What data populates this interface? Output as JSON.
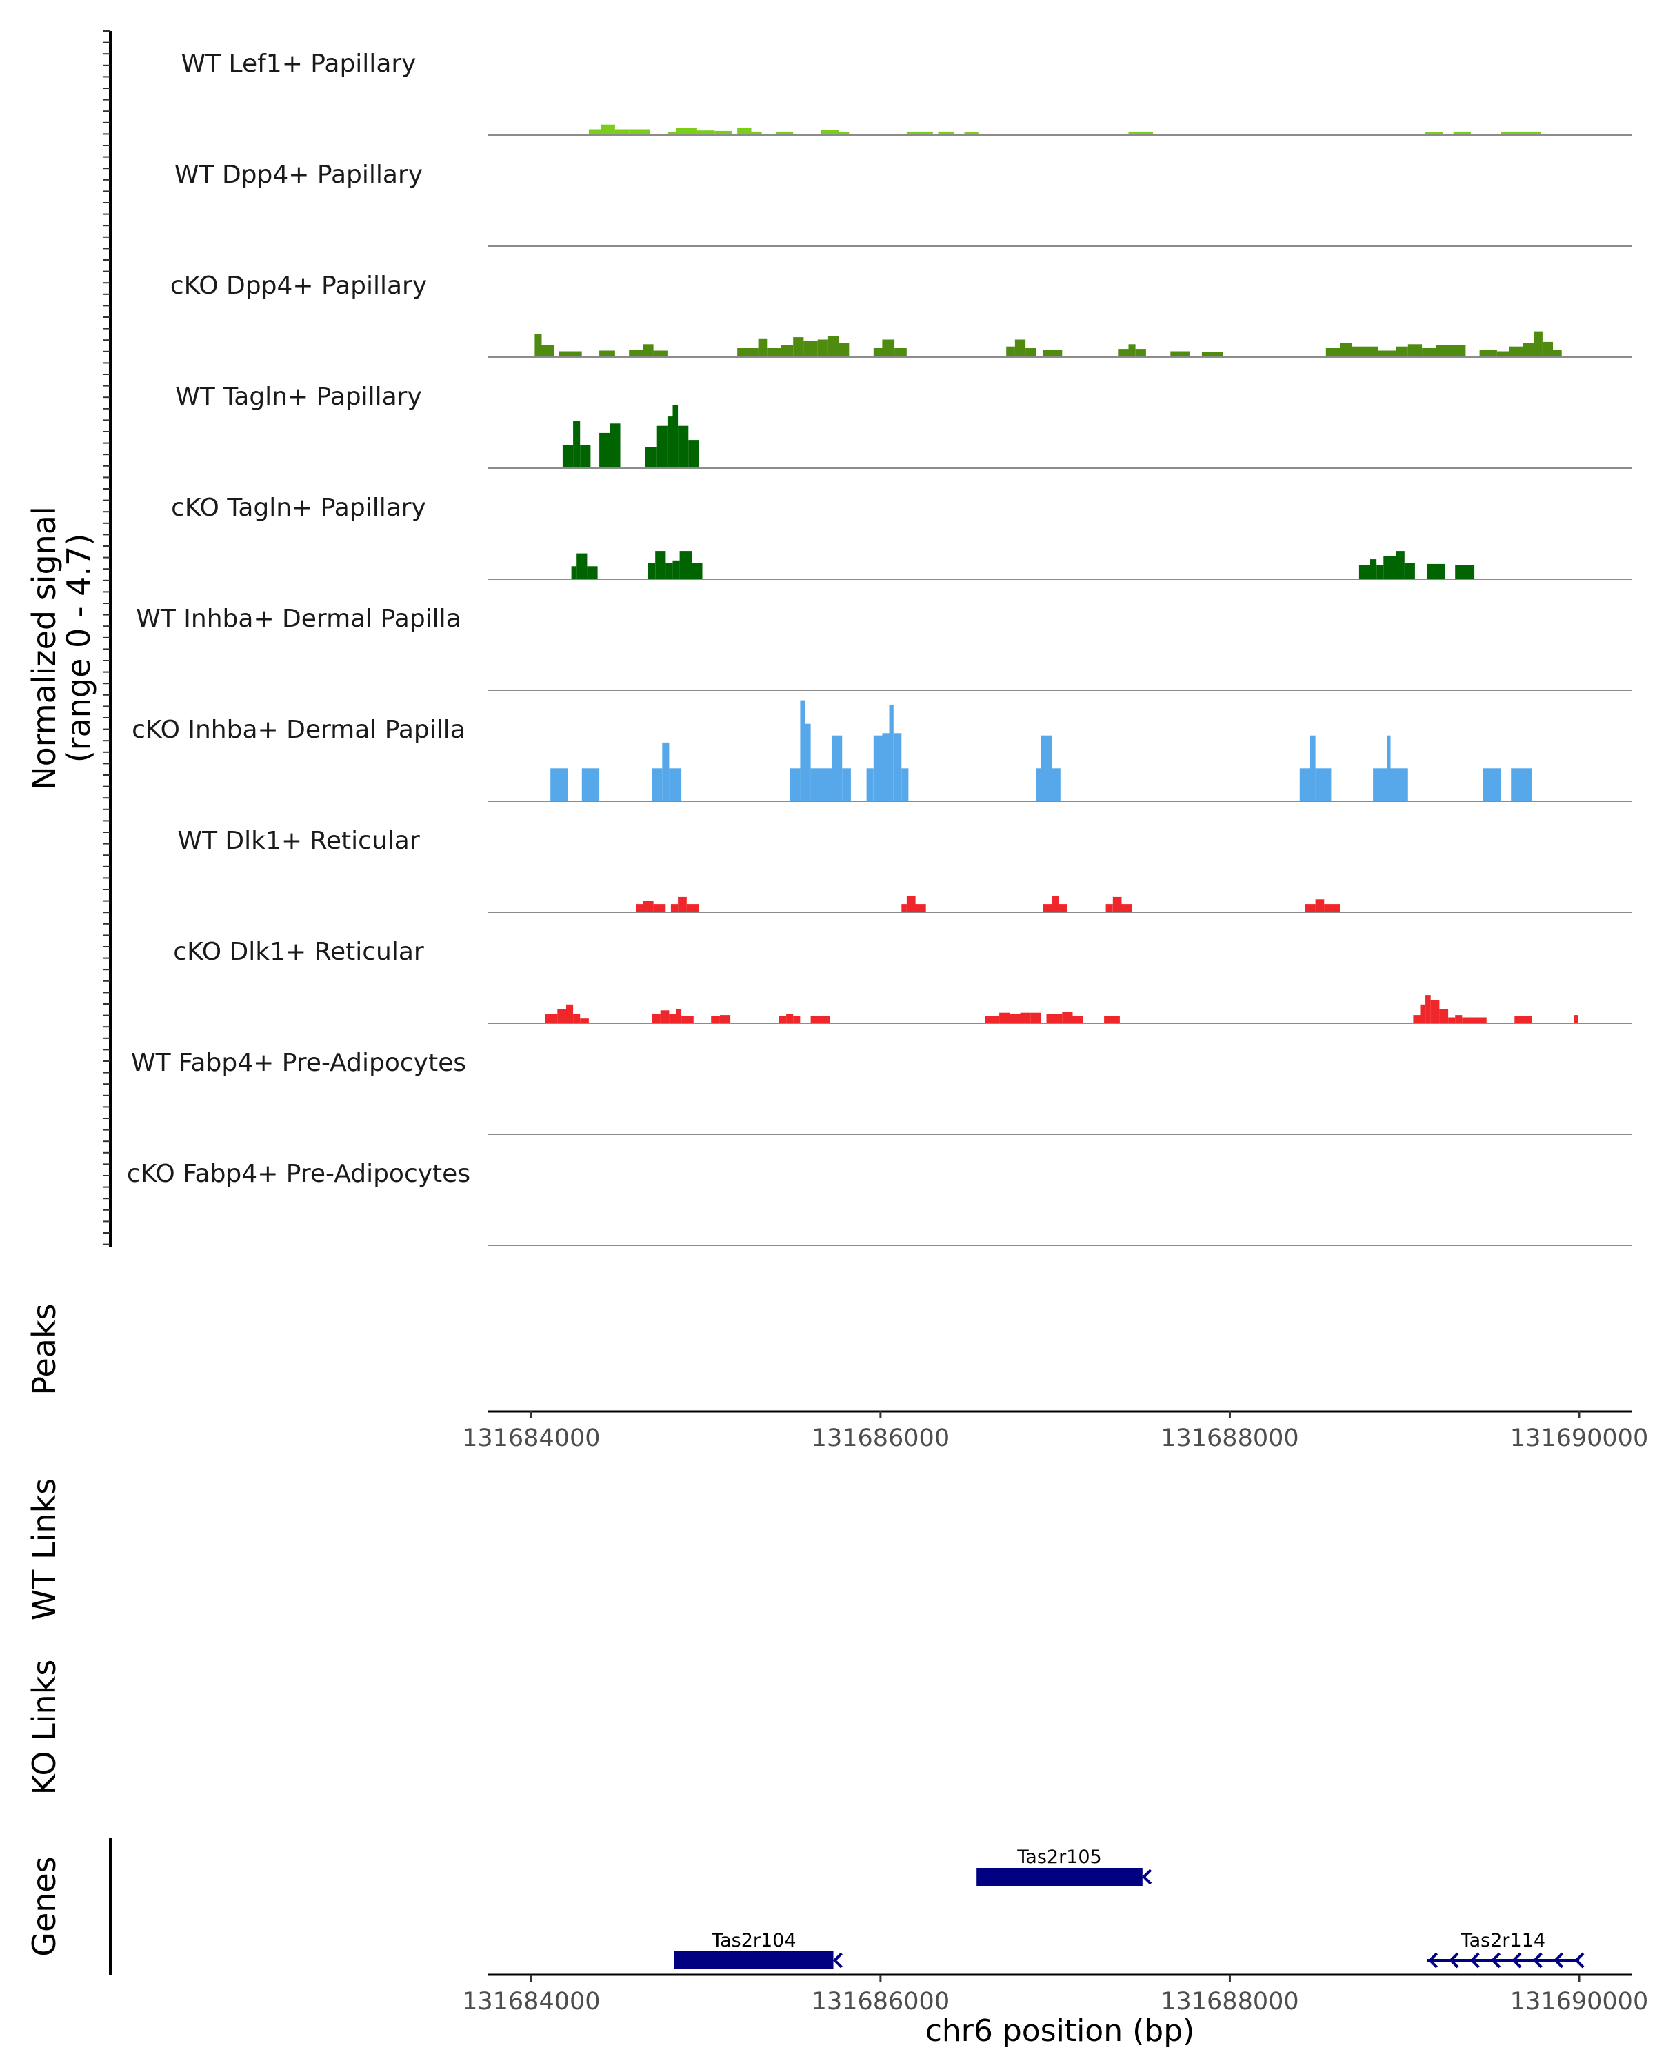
{
  "chart_data": {
    "type": "area",
    "title": "",
    "ylabel_line1": "Normalized signal",
    "ylabel_line2": "(range 0 - 4.7)",
    "ylim": [
      0,
      4.7
    ],
    "xlim": [
      131683750,
      131690300
    ],
    "xlabel": "chr6 position (bp)",
    "xticks": [
      131684000,
      131686000,
      131688000,
      131690000
    ],
    "xtick_labels": [
      "131684000",
      "131686000",
      "131688000",
      "131690000"
    ],
    "tracks": [
      {
        "name": "WT Lef1+ Papillary",
        "color": "#7ACD19",
        "bins": [
          [
            131684330,
            131684400,
            0.25
          ],
          [
            131684400,
            131684480,
            0.45
          ],
          [
            131684480,
            131684560,
            0.25
          ],
          [
            131684560,
            131684680,
            0.25
          ],
          [
            131684780,
            131684830,
            0.15
          ],
          [
            131684830,
            131684950,
            0.3
          ],
          [
            131684950,
            131685050,
            0.2
          ],
          [
            131685050,
            131685150,
            0.18
          ],
          [
            131685180,
            131685260,
            0.32
          ],
          [
            131685260,
            131685320,
            0.15
          ],
          [
            131685400,
            131685500,
            0.15
          ],
          [
            131685660,
            131685760,
            0.22
          ],
          [
            131685760,
            131685820,
            0.12
          ],
          [
            131686150,
            131686300,
            0.15
          ],
          [
            131686330,
            131686420,
            0.15
          ],
          [
            131686480,
            131686560,
            0.12
          ],
          [
            131687420,
            131687560,
            0.15
          ],
          [
            131689120,
            131689220,
            0.13
          ],
          [
            131689280,
            131689380,
            0.15
          ],
          [
            131689550,
            131689780,
            0.15
          ]
        ]
      },
      {
        "name": "WT Dpp4+ Papillary",
        "color": "#4E8B0E",
        "bins": []
      },
      {
        "name": "cKO Dpp4+ Papillary",
        "color": "#4E8B0E",
        "bins": [
          [
            131684020,
            131684060,
            1.0
          ],
          [
            131684060,
            131684130,
            0.5
          ],
          [
            131684160,
            131684290,
            0.25
          ],
          [
            131684390,
            131684480,
            0.28
          ],
          [
            131684560,
            131684640,
            0.3
          ],
          [
            131684640,
            131684700,
            0.55
          ],
          [
            131684700,
            131684780,
            0.28
          ],
          [
            131685180,
            131685300,
            0.4
          ],
          [
            131685300,
            131685350,
            0.8
          ],
          [
            131685350,
            131685430,
            0.4
          ],
          [
            131685430,
            131685500,
            0.5
          ],
          [
            131685500,
            131685560,
            0.85
          ],
          [
            131685560,
            131685640,
            0.7
          ],
          [
            131685640,
            131685700,
            0.75
          ],
          [
            131685700,
            131685760,
            0.9
          ],
          [
            131685760,
            131685820,
            0.6
          ],
          [
            131685960,
            131686010,
            0.4
          ],
          [
            131686010,
            131686080,
            0.75
          ],
          [
            131686080,
            131686150,
            0.4
          ],
          [
            131686720,
            131686770,
            0.45
          ],
          [
            131686770,
            131686830,
            0.75
          ],
          [
            131686830,
            131686890,
            0.4
          ],
          [
            131686930,
            131687040,
            0.3
          ],
          [
            131687360,
            131687420,
            0.35
          ],
          [
            131687420,
            131687460,
            0.55
          ],
          [
            131687460,
            131687520,
            0.35
          ],
          [
            131687660,
            131687770,
            0.25
          ],
          [
            131687840,
            131687960,
            0.22
          ],
          [
            131688550,
            131688630,
            0.4
          ],
          [
            131688630,
            131688700,
            0.6
          ],
          [
            131688700,
            131688850,
            0.45
          ],
          [
            131688850,
            131688950,
            0.28
          ],
          [
            131688950,
            131689020,
            0.45
          ],
          [
            131689020,
            131689100,
            0.55
          ],
          [
            131689100,
            131689180,
            0.4
          ],
          [
            131689180,
            131689350,
            0.5
          ],
          [
            131689430,
            131689530,
            0.3
          ],
          [
            131689530,
            131689600,
            0.25
          ],
          [
            131689600,
            131689680,
            0.45
          ],
          [
            131689680,
            131689740,
            0.6
          ],
          [
            131689740,
            131689790,
            1.1
          ],
          [
            131689790,
            131689850,
            0.65
          ],
          [
            131689850,
            131689900,
            0.3
          ]
        ]
      },
      {
        "name": "WT Tagln+ Papillary",
        "color": "#006400",
        "bins": [
          [
            131684180,
            131684240,
            1.0
          ],
          [
            131684240,
            131684280,
            2.0
          ],
          [
            131684280,
            131684340,
            1.0
          ],
          [
            131684390,
            131684450,
            1.5
          ],
          [
            131684450,
            131684510,
            1.9
          ],
          [
            131684650,
            131684720,
            0.9
          ],
          [
            131684720,
            131684780,
            1.8
          ],
          [
            131684780,
            131684810,
            2.2
          ],
          [
            131684810,
            131684840,
            2.7
          ],
          [
            131684840,
            131684900,
            1.8
          ],
          [
            131684900,
            131684960,
            1.2
          ]
        ]
      },
      {
        "name": "cKO Tagln+ Papillary",
        "color": "#006400",
        "bins": [
          [
            131684230,
            131684260,
            0.55
          ],
          [
            131684260,
            131684320,
            1.1
          ],
          [
            131684320,
            131684380,
            0.55
          ],
          [
            131684670,
            131684710,
            0.7
          ],
          [
            131684710,
            131684770,
            1.2
          ],
          [
            131684770,
            131684810,
            0.7
          ],
          [
            131684810,
            131684850,
            0.8
          ],
          [
            131684850,
            131684920,
            1.2
          ],
          [
            131684920,
            131684980,
            0.7
          ],
          [
            131688740,
            131688800,
            0.6
          ],
          [
            131688800,
            131688840,
            0.85
          ],
          [
            131688840,
            131688880,
            0.6
          ],
          [
            131688880,
            131688950,
            1.0
          ],
          [
            131688950,
            131689000,
            1.2
          ],
          [
            131689000,
            131689060,
            0.7
          ],
          [
            131689130,
            131689230,
            0.65
          ],
          [
            131689290,
            131689400,
            0.6
          ]
        ]
      },
      {
        "name": "WT Inhba+ Dermal Papilla",
        "color": "#56A8EA",
        "bins": []
      },
      {
        "name": "cKO Inhba+ Dermal Papilla",
        "color": "#56A8EA",
        "bins": [
          [
            131684110,
            131684210,
            1.4
          ],
          [
            131684290,
            131684390,
            1.4
          ],
          [
            131684690,
            131684750,
            1.4
          ],
          [
            131684750,
            131684790,
            2.5
          ],
          [
            131684790,
            131684860,
            1.4
          ],
          [
            131685480,
            131685540,
            1.4
          ],
          [
            131685540,
            131685570,
            4.3
          ],
          [
            131685570,
            131685600,
            3.3
          ],
          [
            131685600,
            131685720,
            1.4
          ],
          [
            131685720,
            131685780,
            2.8
          ],
          [
            131685780,
            131685830,
            1.4
          ],
          [
            131685920,
            131685960,
            1.4
          ],
          [
            131685960,
            131686010,
            2.8
          ],
          [
            131686010,
            131686050,
            2.9
          ],
          [
            131686050,
            131686075,
            4.1
          ],
          [
            131686075,
            131686120,
            2.9
          ],
          [
            131686120,
            131686160,
            1.4
          ],
          [
            131686890,
            131686920,
            1.4
          ],
          [
            131686920,
            131686980,
            2.8
          ],
          [
            131686980,
            131687030,
            1.4
          ],
          [
            131688400,
            131688460,
            1.4
          ],
          [
            131688460,
            131688490,
            2.8
          ],
          [
            131688490,
            131688580,
            1.4
          ],
          [
            131688820,
            131688900,
            1.4
          ],
          [
            131688900,
            131688920,
            2.8
          ],
          [
            131688920,
            131689020,
            1.4
          ],
          [
            131689450,
            131689550,
            1.4
          ],
          [
            131689610,
            131689730,
            1.4
          ]
        ]
      },
      {
        "name": "WT Dlk1+ Reticular",
        "color": "#F0272A",
        "bins": [
          [
            131684600,
            131684640,
            0.35
          ],
          [
            131684640,
            131684700,
            0.5
          ],
          [
            131684700,
            131684770,
            0.35
          ],
          [
            131684800,
            131684840,
            0.35
          ],
          [
            131684840,
            131684890,
            0.65
          ],
          [
            131684890,
            131684960,
            0.35
          ],
          [
            131686120,
            131686150,
            0.35
          ],
          [
            131686150,
            131686200,
            0.7
          ],
          [
            131686200,
            131686260,
            0.35
          ],
          [
            131686930,
            131686980,
            0.35
          ],
          [
            131686980,
            131687020,
            0.7
          ],
          [
            131687020,
            131687070,
            0.35
          ],
          [
            131687290,
            131687330,
            0.35
          ],
          [
            131687330,
            131687380,
            0.65
          ],
          [
            131687380,
            131687440,
            0.35
          ],
          [
            131688430,
            131688490,
            0.35
          ],
          [
            131688490,
            131688540,
            0.55
          ],
          [
            131688540,
            131688630,
            0.35
          ]
        ]
      },
      {
        "name": "cKO Dlk1+ Reticular",
        "color": "#F0272A",
        "bins": [
          [
            131684080,
            131684150,
            0.4
          ],
          [
            131684150,
            131684200,
            0.6
          ],
          [
            131684200,
            131684240,
            0.8
          ],
          [
            131684240,
            131684280,
            0.4
          ],
          [
            131684280,
            131684330,
            0.2
          ],
          [
            131684690,
            131684740,
            0.4
          ],
          [
            131684740,
            131684790,
            0.55
          ],
          [
            131684790,
            131684830,
            0.4
          ],
          [
            131684830,
            131684860,
            0.6
          ],
          [
            131684860,
            131684930,
            0.3
          ],
          [
            131685030,
            131685080,
            0.3
          ],
          [
            131685080,
            131685140,
            0.35
          ],
          [
            131685420,
            131685460,
            0.3
          ],
          [
            131685460,
            131685500,
            0.4
          ],
          [
            131685500,
            131685540,
            0.3
          ],
          [
            131685600,
            131685710,
            0.3
          ],
          [
            131686600,
            131686680,
            0.3
          ],
          [
            131686680,
            131686740,
            0.45
          ],
          [
            131686740,
            131686800,
            0.4
          ],
          [
            131686800,
            131686860,
            0.45
          ],
          [
            131686860,
            131686920,
            0.45
          ],
          [
            131686950,
            131687040,
            0.4
          ],
          [
            131687040,
            131687100,
            0.5
          ],
          [
            131687100,
            131687160,
            0.3
          ],
          [
            131687280,
            131687370,
            0.3
          ],
          [
            131689050,
            131689090,
            0.35
          ],
          [
            131689090,
            131689120,
            0.8
          ],
          [
            131689120,
            131689150,
            1.2
          ],
          [
            131689150,
            131689200,
            1.0
          ],
          [
            131689200,
            131689250,
            0.6
          ],
          [
            131689250,
            131689290,
            0.25
          ],
          [
            131689290,
            131689330,
            0.35
          ],
          [
            131689330,
            131689400,
            0.25
          ],
          [
            131689400,
            131689470,
            0.25
          ],
          [
            131689630,
            131689730,
            0.3
          ],
          [
            131689970,
            131689995,
            0.35
          ]
        ]
      },
      {
        "name": "WT Fabp4+ Pre-Adipocytes",
        "color": "#E88A35",
        "bins": []
      },
      {
        "name": "cKO Fabp4+ Pre-Adipocytes",
        "color": "#E88A35",
        "bins": []
      }
    ],
    "panels": {
      "peaks": "Peaks",
      "wt_links": "WT Links",
      "ko_links": "KO Links",
      "genes": "Genes"
    },
    "genes": [
      {
        "name": "Tas2r105",
        "start": 131686550,
        "end": 131687500,
        "strand": "-",
        "row": 1,
        "style": "block"
      },
      {
        "name": "Tas2r104",
        "start": 131684820,
        "end": 131685730,
        "strand": "-",
        "row": 2,
        "style": "block"
      },
      {
        "name": "Tas2r114",
        "start": 131689130,
        "end": 131690000,
        "strand": "-",
        "row": 2,
        "style": "arrows"
      }
    ],
    "gene_color": "#000080"
  }
}
